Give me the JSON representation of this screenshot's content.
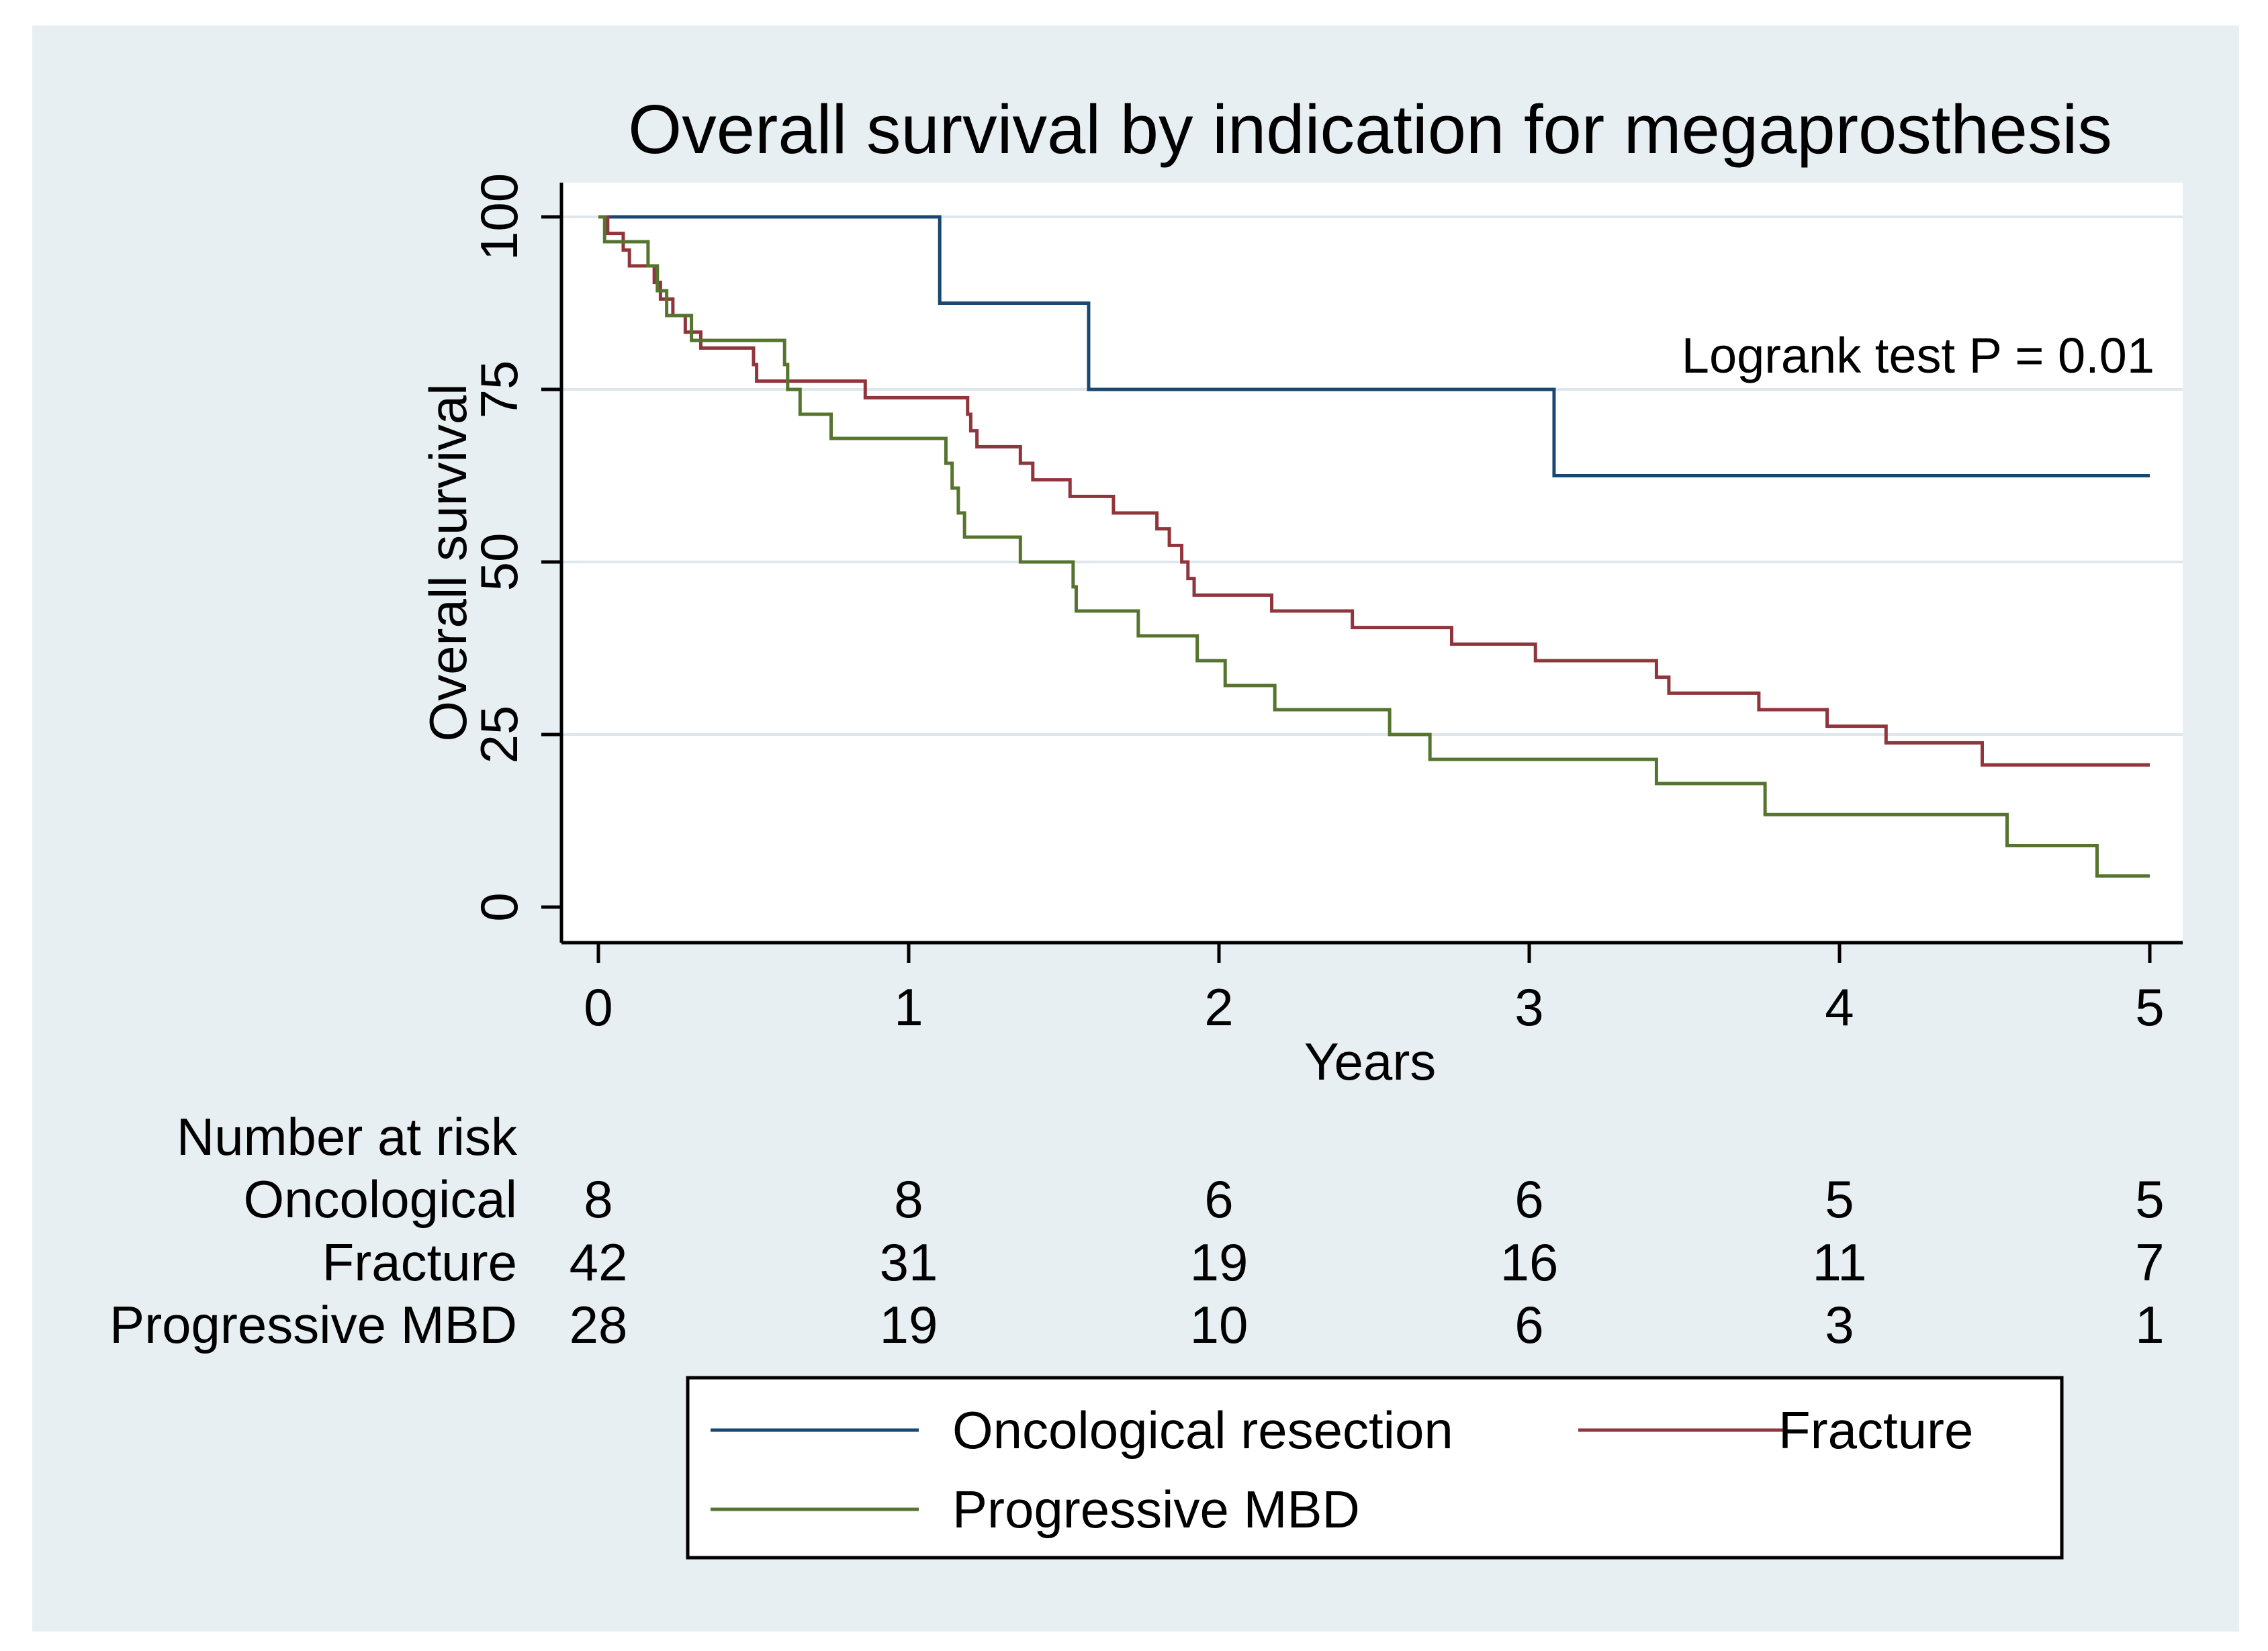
{
  "chart_data": {
    "type": "line",
    "step": true,
    "title": "Overall survival by indication for megaprosthesis",
    "xlabel": "Years",
    "ylabel": "Overall survival",
    "xlim": [
      0,
      5
    ],
    "ylim": [
      0,
      100
    ],
    "xticks": [
      "0",
      "1",
      "2",
      "3",
      "4",
      "5"
    ],
    "yticks": [
      "0",
      "25",
      "50",
      "75",
      "100"
    ],
    "grid": true,
    "annotation": "Logrank test P = 0.01",
    "colors": {
      "background": "#e8eff3",
      "plot_region": "#ffffff",
      "grid": "#dfe7ec",
      "oncological": "#1a476f",
      "fracture": "#90353b",
      "progressive": "#55752f"
    },
    "series": [
      {
        "name": "Oncological resection",
        "points": [
          [
            0,
            100
          ],
          [
            1.1,
            87.5
          ],
          [
            1.58,
            75
          ],
          [
            3.08,
            62.5
          ],
          [
            5,
            62.5
          ]
        ]
      },
      {
        "name": "Fracture",
        "points": [
          [
            0,
            100
          ],
          [
            0.03,
            97.6
          ],
          [
            0.08,
            95.2
          ],
          [
            0.1,
            92.9
          ],
          [
            0.18,
            90.5
          ],
          [
            0.2,
            88.1
          ],
          [
            0.24,
            85.7
          ],
          [
            0.28,
            83.3
          ],
          [
            0.33,
            81
          ],
          [
            0.5,
            78.6
          ],
          [
            0.51,
            76.2
          ],
          [
            0.73,
            76.2
          ],
          [
            0.86,
            73.8
          ],
          [
            1.19,
            71.4
          ],
          [
            1.2,
            69
          ],
          [
            1.22,
            66.7
          ],
          [
            1.36,
            64.3
          ],
          [
            1.4,
            61.9
          ],
          [
            1.52,
            59.5
          ],
          [
            1.6,
            59.5
          ],
          [
            1.66,
            57.1
          ],
          [
            1.8,
            54.8
          ],
          [
            1.84,
            52.4
          ],
          [
            1.88,
            50
          ],
          [
            1.9,
            47.6
          ],
          [
            1.92,
            45.2
          ],
          [
            2.17,
            42.9
          ],
          [
            2.43,
            40.5
          ],
          [
            2.75,
            38.1
          ],
          [
            3.02,
            35.7
          ],
          [
            3.41,
            33.3
          ],
          [
            3.45,
            31
          ],
          [
            3.74,
            28.6
          ],
          [
            3.96,
            26.2
          ],
          [
            4.15,
            23.8
          ],
          [
            4.46,
            20.6
          ],
          [
            5,
            20.6
          ]
        ]
      },
      {
        "name": "Progressive MBD",
        "points": [
          [
            0,
            100
          ],
          [
            0.02,
            96.4
          ],
          [
            0.16,
            92.9
          ],
          [
            0.19,
            89.3
          ],
          [
            0.22,
            85.7
          ],
          [
            0.3,
            82.1
          ],
          [
            0.6,
            78.6
          ],
          [
            0.61,
            75
          ],
          [
            0.65,
            71.4
          ],
          [
            0.75,
            67.9
          ],
          [
            1.12,
            64.3
          ],
          [
            1.14,
            60.7
          ],
          [
            1.16,
            57.1
          ],
          [
            1.18,
            53.6
          ],
          [
            1.36,
            50
          ],
          [
            1.53,
            46.4
          ],
          [
            1.54,
            42.9
          ],
          [
            1.74,
            39.3
          ],
          [
            1.93,
            35.7
          ],
          [
            2.02,
            32.1
          ],
          [
            2.18,
            28.6
          ],
          [
            2.55,
            25
          ],
          [
            2.68,
            21.4
          ],
          [
            3.41,
            17.9
          ],
          [
            3.76,
            13.4
          ],
          [
            4.54,
            8.9
          ],
          [
            4.83,
            4.5
          ],
          [
            5,
            4.5
          ]
        ]
      }
    ],
    "risk_table": {
      "header": "Number at risk",
      "rows": [
        {
          "label": "Oncological",
          "values": [
            "8",
            "8",
            "6",
            "6",
            "5",
            "5"
          ]
        },
        {
          "label": "Fracture",
          "values": [
            "42",
            "31",
            "19",
            "16",
            "11",
            "7"
          ]
        },
        {
          "label": "Progressive MBD",
          "values": [
            "28",
            "19",
            "10",
            "6",
            "3",
            "1"
          ]
        }
      ]
    },
    "legend": {
      "position": "bottom",
      "items": [
        "Oncological resection",
        "Fracture",
        "Progressive MBD"
      ]
    }
  }
}
